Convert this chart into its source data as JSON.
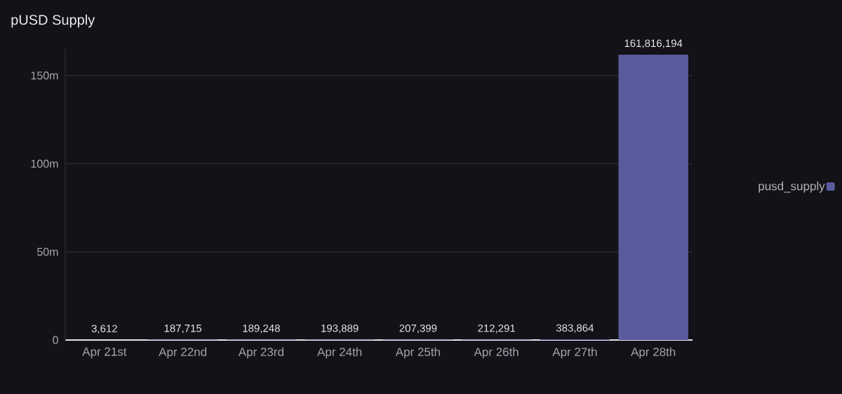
{
  "chart_data": {
    "type": "bar",
    "title": "pUSD Supply",
    "categories": [
      "Apr 21st",
      "Apr 22nd",
      "Apr 23rd",
      "Apr 24th",
      "Apr 25th",
      "Apr 26th",
      "Apr 27th",
      "Apr 28th"
    ],
    "series": [
      {
        "name": "pusd_supply",
        "color": "#5a5a9e",
        "values": [
          3612,
          187715,
          189248,
          193889,
          207399,
          212291,
          383864,
          161816194
        ],
        "value_labels": [
          "3,612",
          "187,715",
          "189,248",
          "193,889",
          "207,399",
          "212,291",
          "383,864",
          "161,816,194"
        ]
      }
    ],
    "ylim": [
      0,
      165000000
    ],
    "yticks": [
      0,
      {
        "value": 50000000,
        "label": "50m"
      },
      {
        "value": 100000000,
        "label": "100m"
      },
      {
        "value": 150000000,
        "label": "150m"
      }
    ],
    "grid": "y",
    "legend": "right"
  }
}
